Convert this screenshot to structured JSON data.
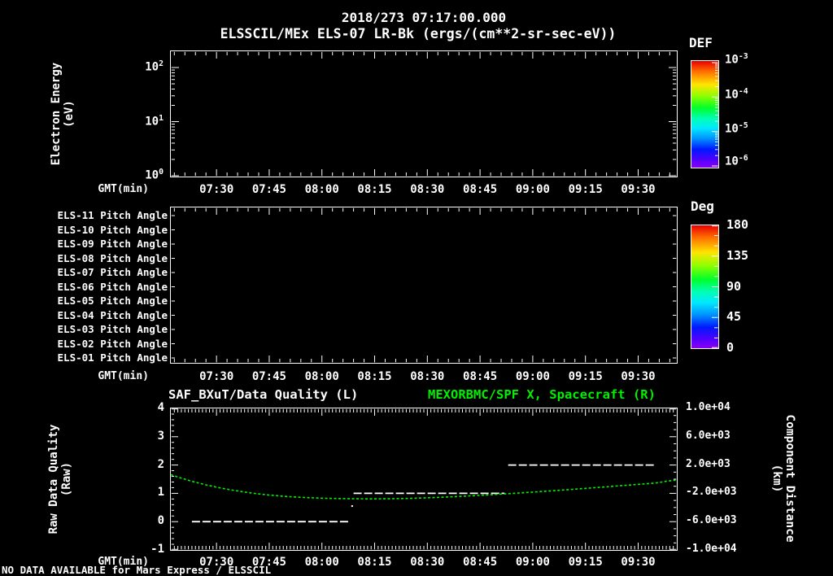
{
  "header": {
    "title": "2018/273 07:17:00.000",
    "subtitle": "ELSSCIL/MEx ELS-07 LR-Bk  (ergs/(cm**2-sr-sec-eV))"
  },
  "colors": {
    "background": "#000000",
    "foreground": "#ffffff",
    "series_green": "#00f000",
    "quality_white": "#ffffff"
  },
  "time_axis": {
    "label": "GMT(min)",
    "start_time": "07:17:00",
    "tick_labels": [
      "07:30",
      "07:45",
      "08:00",
      "08:15",
      "08:30",
      "08:45",
      "09:00",
      "09:15",
      "09:30"
    ]
  },
  "panel1": {
    "ylabel_line1": "Electron Energy",
    "ylabel_line2": "(eV)",
    "energy_ticks": [
      {
        "base": "10",
        "exp": "2"
      },
      {
        "base": "10",
        "exp": "1"
      },
      {
        "base": "10",
        "exp": "0"
      }
    ],
    "colorbar": {
      "title": "DEF",
      "labels": [
        {
          "base": "10",
          "exp": "-3"
        },
        {
          "base": "10",
          "exp": "-4"
        },
        {
          "base": "10",
          "exp": "-5"
        },
        {
          "base": "10",
          "exp": "-6"
        }
      ]
    }
  },
  "panel2": {
    "rows": [
      "ELS-11 Pitch Angle",
      "ELS-10 Pitch Angle",
      "ELS-09 Pitch Angle",
      "ELS-08 Pitch Angle",
      "ELS-07 Pitch Angle",
      "ELS-06 Pitch Angle",
      "ELS-05 Pitch Angle",
      "ELS-04 Pitch Angle",
      "ELS-03 Pitch Angle",
      "ELS-02 Pitch Angle",
      "ELS-01 Pitch Angle"
    ],
    "colorbar": {
      "title": "Deg",
      "labels": [
        "180",
        "135",
        "90",
        "45",
        "0"
      ]
    }
  },
  "panel3": {
    "title_left": "SAF_BXuT/Data Quality (L)",
    "title_right": "MEXORBMC/SPF X, Spacecraft (R)",
    "ylabel_left_line1": "Raw Data Quality",
    "ylabel_left_line2": "(Raw)",
    "ylabel_right_line1": "Component Distance",
    "ylabel_right_line2": "(km)",
    "yticks_left": [
      "4",
      "3",
      "2",
      "1",
      "0",
      "-1"
    ],
    "yticks_right": [
      "1.0e+04",
      "6.0e+03",
      "2.0e+03",
      "-2.0e+03",
      "-6.0e+03",
      "-1.0e+04"
    ]
  },
  "footer": {
    "no_data_text": "NO DATA AVAILABLE for Mars Express / ELSSCIL"
  },
  "chart_data": [
    {
      "type": "heatmap",
      "name": "electron-energy-spectrogram",
      "title": "ELSSCIL/MEx ELS-07 LR-Bk",
      "units": "ergs/(cm**2-sr-sec-eV)",
      "xlabel": "GMT(min)",
      "ylabel": "Electron Energy (eV)",
      "x_range": [
        "07:17:00",
        "09:41:00"
      ],
      "y_scale": "log",
      "y_ticks": [
        1,
        10,
        100
      ],
      "colorbar": {
        "title": "DEF",
        "scale": "log",
        "min": 1e-06,
        "max": 0.001
      },
      "data": "none (NO DATA AVAILABLE)"
    },
    {
      "type": "heatmap",
      "name": "pitch-angle-panel",
      "xlabel": "GMT(min)",
      "row_labels_top_to_bottom": [
        "ELS-11",
        "ELS-10",
        "ELS-09",
        "ELS-08",
        "ELS-07",
        "ELS-06",
        "ELS-05",
        "ELS-04",
        "ELS-03",
        "ELS-02",
        "ELS-01"
      ],
      "x_range": [
        "07:17:00",
        "09:41:00"
      ],
      "colorbar": {
        "title": "Deg",
        "min": 0,
        "max": 180,
        "ticks": [
          0,
          45,
          90,
          135,
          180
        ]
      },
      "data": "none (NO DATA AVAILABLE)"
    },
    {
      "type": "line",
      "name": "quality-and-spacecraft-distance",
      "xlabel": "GMT(min)",
      "x_range": [
        "07:17:00",
        "09:41:00"
      ],
      "x_total_minutes": 144,
      "left_axis": {
        "label": "Raw Data Quality (Raw)",
        "min": -1,
        "max": 4,
        "major_step": 1,
        "minor_step": 0.2
      },
      "right_axis": {
        "label": "Component Distance (km)",
        "min": -10000,
        "max": 10000,
        "major_step": 4000,
        "minor_step": 1000
      },
      "series": [
        {
          "name": "SAF_BXuT/Data Quality (L)",
          "axis": "left",
          "color": "#ffffff",
          "style": "dashed-step",
          "segments": [
            {
              "start_min": 6,
              "end_min": 51,
              "value": 0
            },
            {
              "start_min": 52,
              "end_min": 95,
              "value": 1
            },
            {
              "start_min": 96,
              "end_min": 138,
              "value": 2
            }
          ],
          "artifact_point": {
            "t_min": 51.6,
            "value": 0.55
          }
        },
        {
          "name": "MEXORBMC/SPF X, Spacecraft (R)",
          "axis": "right",
          "color": "#00f000",
          "style": "dashed-curve",
          "points_min_km": [
            [
              0,
              630
            ],
            [
              3,
              150
            ],
            [
              6,
              -300
            ],
            [
              10,
              -800
            ],
            [
              14,
              -1230
            ],
            [
              18,
              -1590
            ],
            [
              23,
              -1960
            ],
            [
              28,
              -2240
            ],
            [
              33,
              -2450
            ],
            [
              38,
              -2590
            ],
            [
              43,
              -2690
            ],
            [
              48,
              -2740
            ],
            [
              53,
              -2770
            ],
            [
              58,
              -2780
            ],
            [
              63,
              -2760
            ],
            [
              68,
              -2710
            ],
            [
              73,
              -2630
            ],
            [
              78,
              -2530
            ],
            [
              83,
              -2410
            ],
            [
              88,
              -2280
            ],
            [
              93,
              -2140
            ],
            [
              98,
              -1990
            ],
            [
              103,
              -1830
            ],
            [
              108,
              -1660
            ],
            [
              113,
              -1480
            ],
            [
              118,
              -1300
            ],
            [
              123,
              -1110
            ],
            [
              128,
              -920
            ],
            [
              133,
              -730
            ],
            [
              138,
              -540
            ],
            [
              141,
              -300
            ],
            [
              144,
              -100
            ]
          ]
        }
      ]
    }
  ]
}
